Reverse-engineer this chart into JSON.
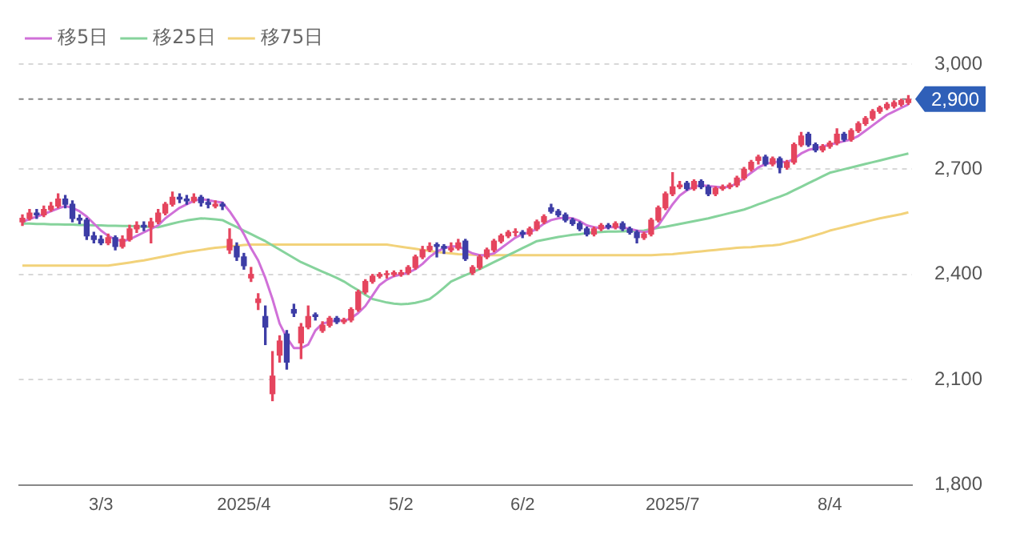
{
  "chart_data": {
    "type": "candlestick",
    "categories": [
      null,
      null,
      null,
      null,
      null,
      null,
      null,
      null,
      null,
      null,
      null,
      "3/3",
      null,
      null,
      null,
      null,
      null,
      null,
      null,
      null,
      null,
      null,
      null,
      null,
      null,
      null,
      null,
      null,
      null,
      null,
      null,
      "2025/4",
      null,
      null,
      null,
      null,
      null,
      null,
      null,
      null,
      null,
      null,
      null,
      null,
      null,
      null,
      null,
      null,
      null,
      null,
      null,
      null,
      null,
      "5/2",
      null,
      null,
      null,
      null,
      null,
      null,
      null,
      null,
      null,
      null,
      null,
      null,
      null,
      null,
      null,
      null,
      "6/2",
      null,
      null,
      null,
      null,
      null,
      null,
      null,
      null,
      null,
      null,
      null,
      null,
      null,
      null,
      null,
      null,
      null,
      null,
      null,
      null,
      "2025/7",
      null,
      null,
      null,
      null,
      null,
      null,
      null,
      null,
      null,
      null,
      null,
      null,
      null,
      null,
      null,
      null,
      null,
      null,
      null,
      null,
      null,
      "8/4",
      null,
      null,
      null,
      null,
      null,
      null,
      null,
      null,
      null,
      null,
      null
    ],
    "ohlc": [
      [
        2550,
        2570,
        2540,
        2560
      ],
      [
        2560,
        2585,
        2555,
        2575
      ],
      [
        2575,
        2585,
        2560,
        2570
      ],
      [
        2570,
        2595,
        2565,
        2585
      ],
      [
        2585,
        2605,
        2580,
        2595
      ],
      [
        2595,
        2630,
        2590,
        2615
      ],
      [
        2615,
        2625,
        2590,
        2600
      ],
      [
        2600,
        2610,
        2550,
        2560
      ],
      [
        2560,
        2570,
        2545,
        2555
      ],
      [
        2555,
        2560,
        2500,
        2510
      ],
      [
        2510,
        2520,
        2490,
        2500
      ],
      [
        2500,
        2510,
        2485,
        2490
      ],
      [
        2490,
        2515,
        2485,
        2505
      ],
      [
        2505,
        2510,
        2470,
        2480
      ],
      [
        2480,
        2510,
        2475,
        2500
      ],
      [
        2500,
        2540,
        2495,
        2530
      ],
      [
        2530,
        2550,
        2520,
        2540
      ],
      [
        2540,
        2550,
        2525,
        2535
      ],
      [
        2535,
        2560,
        2490,
        2550
      ],
      [
        2550,
        2585,
        2545,
        2575
      ],
      [
        2575,
        2605,
        2570,
        2600
      ],
      [
        2600,
        2635,
        2595,
        2620
      ],
      [
        2620,
        2630,
        2605,
        2615
      ],
      [
        2615,
        2625,
        2600,
        2610
      ],
      [
        2610,
        2630,
        2605,
        2620
      ],
      [
        2620,
        2625,
        2595,
        2605
      ],
      [
        2605,
        2615,
        2590,
        2600
      ],
      [
        2595,
        2610,
        2590,
        2600
      ],
      [
        2600,
        2605,
        2585,
        2595
      ],
      [
        2470,
        2530,
        2460,
        2500
      ],
      [
        2480,
        2490,
        2440,
        2450
      ],
      [
        2450,
        2460,
        2415,
        2425
      ],
      [
        2390,
        2420,
        2380,
        2400
      ],
      [
        2320,
        2345,
        2300,
        2330
      ],
      [
        2280,
        2310,
        2200,
        2250
      ],
      [
        2060,
        2180,
        2040,
        2110
      ],
      [
        2170,
        2225,
        2150,
        2210
      ],
      [
        2230,
        2240,
        2130,
        2150
      ],
      [
        2300,
        2315,
        2280,
        2290
      ],
      [
        2205,
        2260,
        2160,
        2250
      ],
      [
        2250,
        2310,
        2245,
        2280
      ],
      [
        2285,
        2290,
        2270,
        2280
      ],
      [
        2240,
        2265,
        2235,
        2255
      ],
      [
        2255,
        2280,
        2250,
        2275
      ],
      [
        2275,
        2280,
        2260,
        2265
      ],
      [
        2265,
        2275,
        2260,
        2270
      ],
      [
        2270,
        2305,
        2265,
        2300
      ],
      [
        2300,
        2355,
        2295,
        2350
      ],
      [
        2350,
        2385,
        2345,
        2380
      ],
      [
        2380,
        2400,
        2375,
        2395
      ],
      [
        2395,
        2405,
        2390,
        2400
      ],
      [
        2400,
        2410,
        2390,
        2400
      ],
      [
        2400,
        2410,
        2395,
        2405
      ],
      [
        2400,
        2412,
        2395,
        2405
      ],
      [
        2405,
        2425,
        2400,
        2420
      ],
      [
        2420,
        2455,
        2415,
        2450
      ],
      [
        2450,
        2480,
        2445,
        2470
      ],
      [
        2470,
        2490,
        2465,
        2480
      ],
      [
        2485,
        2490,
        2450,
        2480
      ],
      [
        2480,
        2485,
        2460,
        2475
      ],
      [
        2470,
        2490,
        2465,
        2475
      ],
      [
        2475,
        2500,
        2470,
        2490
      ],
      [
        2495,
        2500,
        2440,
        2445
      ],
      [
        2405,
        2425,
        2400,
        2420
      ],
      [
        2420,
        2455,
        2415,
        2450
      ],
      [
        2450,
        2475,
        2445,
        2470
      ],
      [
        2470,
        2500,
        2465,
        2495
      ],
      [
        2495,
        2515,
        2490,
        2510
      ],
      [
        2510,
        2525,
        2505,
        2520
      ],
      [
        2520,
        2530,
        2510,
        2520
      ],
      [
        2520,
        2525,
        2505,
        2515
      ],
      [
        2515,
        2535,
        2510,
        2530
      ],
      [
        2530,
        2555,
        2525,
        2550
      ],
      [
        2550,
        2570,
        2545,
        2565
      ],
      [
        2590,
        2600,
        2575,
        2580
      ],
      [
        2580,
        2585,
        2565,
        2570
      ],
      [
        2570,
        2575,
        2550,
        2555
      ],
      [
        2555,
        2560,
        2540,
        2545
      ],
      [
        2545,
        2550,
        2525,
        2530
      ],
      [
        2530,
        2535,
        2510,
        2515
      ],
      [
        2515,
        2535,
        2510,
        2530
      ],
      [
        2530,
        2545,
        2525,
        2540
      ],
      [
        2540,
        2545,
        2530,
        2535
      ],
      [
        2535,
        2550,
        2530,
        2545
      ],
      [
        2545,
        2550,
        2525,
        2530
      ],
      [
        2530,
        2535,
        2515,
        2520
      ],
      [
        2520,
        2525,
        2490,
        2505
      ],
      [
        2505,
        2520,
        2500,
        2515
      ],
      [
        2515,
        2560,
        2510,
        2555
      ],
      [
        2555,
        2595,
        2550,
        2590
      ],
      [
        2590,
        2635,
        2585,
        2630
      ],
      [
        2630,
        2690,
        2625,
        2650
      ],
      [
        2650,
        2665,
        2645,
        2655
      ],
      [
        2660,
        2665,
        2640,
        2645
      ],
      [
        2645,
        2670,
        2640,
        2665
      ],
      [
        2665,
        2670,
        2645,
        2650
      ],
      [
        2650,
        2655,
        2625,
        2630
      ],
      [
        2630,
        2650,
        2625,
        2645
      ],
      [
        2645,
        2655,
        2640,
        2650
      ],
      [
        2650,
        2660,
        2645,
        2655
      ],
      [
        2655,
        2680,
        2650,
        2675
      ],
      [
        2675,
        2705,
        2670,
        2700
      ],
      [
        2700,
        2725,
        2695,
        2720
      ],
      [
        2725,
        2740,
        2715,
        2735
      ],
      [
        2735,
        2740,
        2710,
        2715
      ],
      [
        2715,
        2735,
        2710,
        2730
      ],
      [
        2730,
        2735,
        2690,
        2705
      ],
      [
        2705,
        2725,
        2700,
        2720
      ],
      [
        2720,
        2775,
        2715,
        2770
      ],
      [
        2770,
        2805,
        2765,
        2795
      ],
      [
        2800,
        2805,
        2765,
        2770
      ],
      [
        2770,
        2775,
        2750,
        2755
      ],
      [
        2755,
        2770,
        2750,
        2765
      ],
      [
        2765,
        2780,
        2760,
        2775
      ],
      [
        2775,
        2815,
        2770,
        2800
      ],
      [
        2800,
        2805,
        2780,
        2785
      ],
      [
        2785,
        2815,
        2780,
        2810
      ],
      [
        2810,
        2835,
        2805,
        2830
      ],
      [
        2830,
        2850,
        2825,
        2845
      ],
      [
        2845,
        2870,
        2840,
        2865
      ],
      [
        2865,
        2880,
        2860,
        2875
      ],
      [
        2875,
        2890,
        2870,
        2885
      ],
      [
        2880,
        2895,
        2875,
        2890
      ],
      [
        2885,
        2900,
        2880,
        2896
      ],
      [
        2890,
        2910,
        2885,
        2900
      ]
    ],
    "series": [
      {
        "name": "移5日",
        "type": "line",
        "color": "#d070d8",
        "values": [
          2550,
          2558,
          2565,
          2572,
          2580,
          2588,
          2595,
          2590,
          2580,
          2565,
          2545,
          2525,
          2510,
          2500,
          2495,
          2500,
          2510,
          2520,
          2530,
          2540,
          2560,
          2575,
          2590,
          2600,
          2610,
          2615,
          2612,
          2608,
          2605,
          2580,
          2550,
          2515,
          2475,
          2440,
          2390,
          2330,
          2260,
          2220,
          2190,
          2190,
          2200,
          2240,
          2260,
          2265,
          2270,
          2268,
          2275,
          2290,
          2310,
          2340,
          2370,
          2385,
          2395,
          2400,
          2405,
          2415,
          2430,
          2450,
          2465,
          2475,
          2480,
          2480,
          2470,
          2460,
          2455,
          2455,
          2460,
          2475,
          2490,
          2505,
          2515,
          2520,
          2530,
          2545,
          2555,
          2560,
          2562,
          2560,
          2552,
          2540,
          2535,
          2532,
          2535,
          2535,
          2535,
          2530,
          2525,
          2520,
          2525,
          2540,
          2570,
          2600,
          2625,
          2640,
          2650,
          2655,
          2652,
          2650,
          2648,
          2650,
          2660,
          2675,
          2690,
          2705,
          2715,
          2720,
          2722,
          2720,
          2730,
          2745,
          2755,
          2760,
          2765,
          2770,
          2775,
          2780,
          2785,
          2795,
          2810,
          2825,
          2840,
          2855,
          2865,
          2875,
          2885
        ]
      },
      {
        "name": "移25日",
        "type": "line",
        "color": "#86d39c",
        "values": [
          2545,
          2545,
          2544,
          2544,
          2543,
          2543,
          2542,
          2542,
          2541,
          2541,
          2540,
          2540,
          2539,
          2539,
          2538,
          2538,
          2537,
          2536,
          2536,
          2535,
          2540,
          2545,
          2550,
          2554,
          2557,
          2560,
          2559,
          2557,
          2555,
          2545,
          2535,
          2525,
          2515,
          2505,
          2495,
          2483,
          2471,
          2459,
          2447,
          2435,
          2426,
          2417,
          2408,
          2399,
          2390,
          2380,
          2367,
          2355,
          2342,
          2330,
          2325,
          2320,
          2317,
          2315,
          2316,
          2319,
          2324,
          2330,
          2345,
          2362,
          2380,
          2389,
          2398,
          2406,
          2415,
          2425,
          2435,
          2445,
          2455,
          2465,
          2475,
          2485,
          2495,
          2499,
          2503,
          2507,
          2510,
          2513,
          2515,
          2518,
          2520,
          2521,
          2522,
          2522,
          2523,
          2524,
          2524,
          2525,
          2529,
          2533,
          2536,
          2540,
          2544,
          2548,
          2552,
          2556,
          2560,
          2565,
          2570,
          2575,
          2580,
          2585,
          2592,
          2600,
          2607,
          2615,
          2622,
          2630,
          2640,
          2650,
          2660,
          2670,
          2680,
          2690,
          2695,
          2700,
          2705,
          2710,
          2715,
          2720,
          2725,
          2730,
          2735,
          2740,
          2745
        ]
      },
      {
        "name": "移75日",
        "type": "line",
        "color": "#f2d27a",
        "values": [
          2425,
          2425,
          2425,
          2425,
          2425,
          2425,
          2425,
          2425,
          2425,
          2425,
          2425,
          2425,
          2425,
          2428,
          2431,
          2434,
          2437,
          2440,
          2444,
          2448,
          2452,
          2456,
          2460,
          2464,
          2467,
          2470,
          2473,
          2476,
          2478,
          2480,
          2482,
          2484,
          2485,
          2485,
          2485,
          2485,
          2485,
          2485,
          2485,
          2485,
          2485,
          2485,
          2485,
          2485,
          2485,
          2485,
          2485,
          2485,
          2485,
          2485,
          2485,
          2485,
          2482,
          2479,
          2476,
          2473,
          2470,
          2467,
          2464,
          2462,
          2460,
          2458,
          2457,
          2456,
          2455,
          2455,
          2455,
          2455,
          2455,
          2455,
          2455,
          2455,
          2455,
          2455,
          2455,
          2455,
          2455,
          2455,
          2455,
          2455,
          2455,
          2455,
          2455,
          2455,
          2455,
          2455,
          2455,
          2455,
          2455,
          2456,
          2457,
          2458,
          2460,
          2462,
          2464,
          2466,
          2468,
          2470,
          2472,
          2474,
          2476,
          2477,
          2478,
          2480,
          2482,
          2483,
          2485,
          2490,
          2495,
          2500,
          2506,
          2512,
          2518,
          2525,
          2530,
          2535,
          2540,
          2545,
          2550,
          2555,
          2560,
          2564,
          2568,
          2572,
          2577
        ]
      }
    ],
    "ylim": [
      1800,
      3000
    ],
    "yticks": [
      {
        "value": 1800,
        "label": "1,800"
      },
      {
        "value": 2100,
        "label": "2,100"
      },
      {
        "value": 2400,
        "label": "2,400"
      },
      {
        "value": 2700,
        "label": "2,700"
      },
      {
        "value": 3000,
        "label": "3,000"
      }
    ],
    "ref_lines": [
      {
        "axis": "y",
        "value": 2900,
        "label": "2,900",
        "line_style": "dashed"
      }
    ],
    "grid": "y",
    "legend": "top left",
    "marker": "none"
  }
}
